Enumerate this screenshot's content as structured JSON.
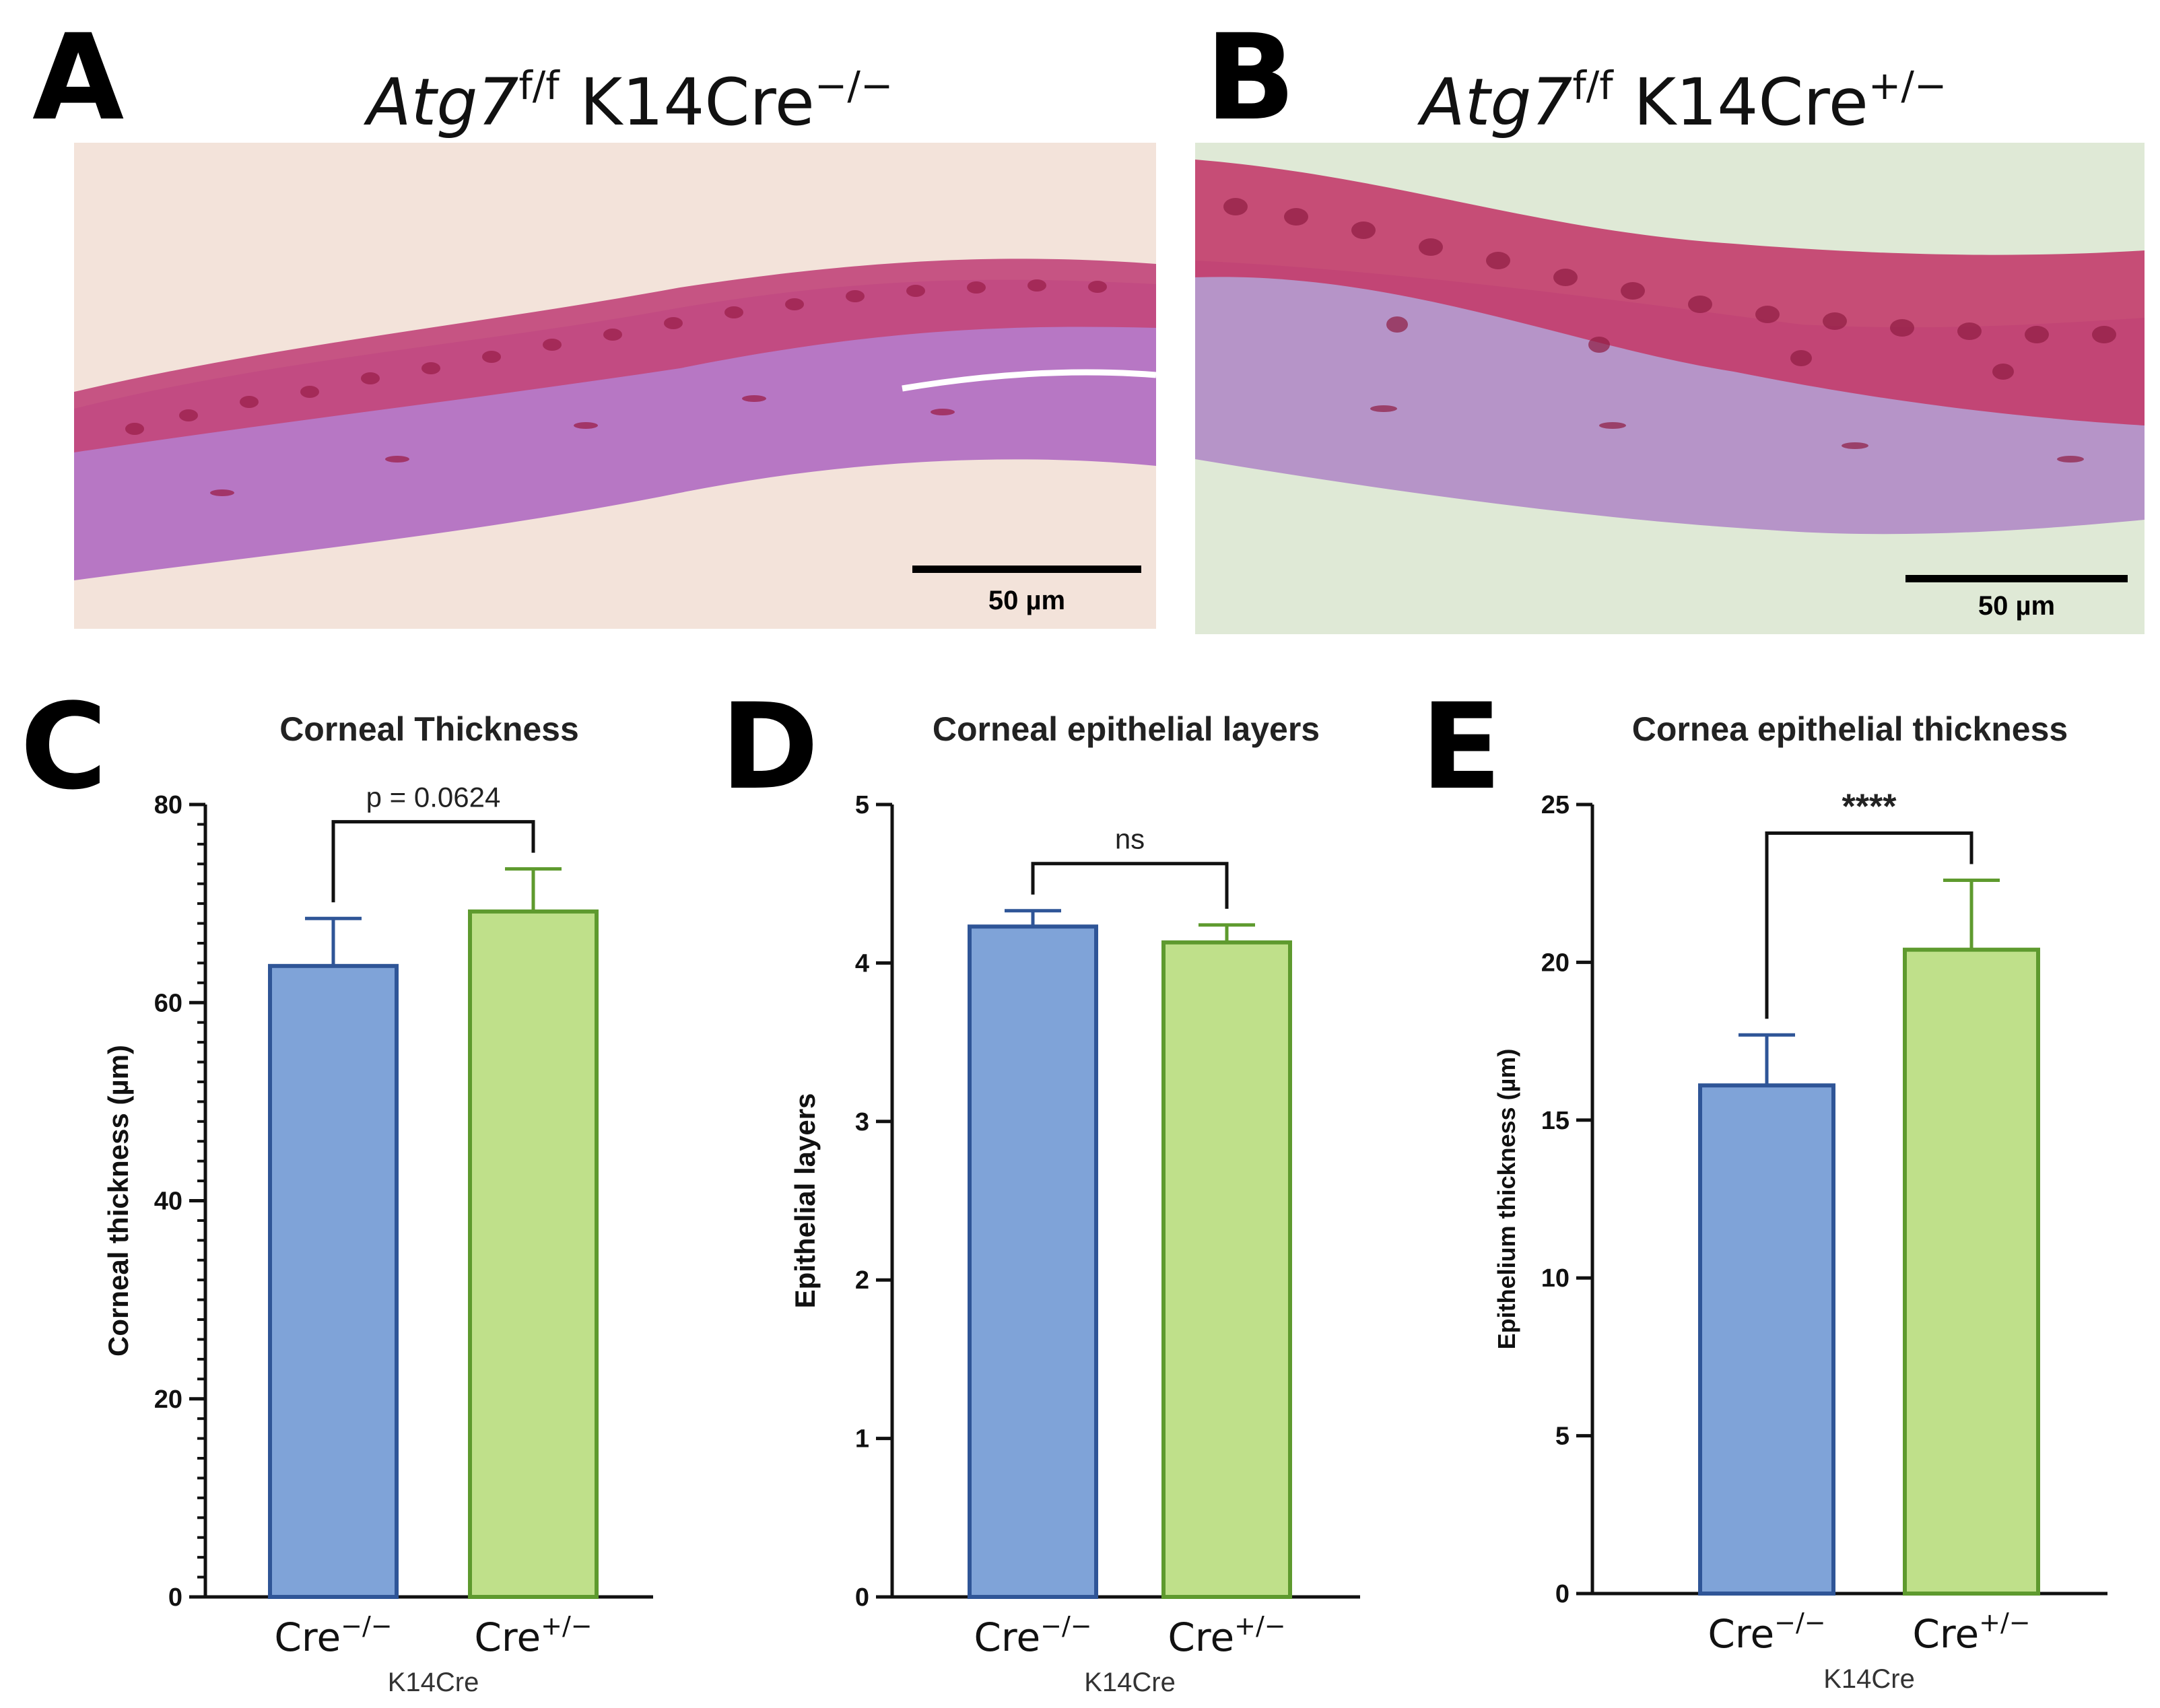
{
  "panels": {
    "A": {
      "letter": "A",
      "title_gene": "Atg7",
      "title_gene_sup": "f/f",
      "title_cre": " K14Cre",
      "title_cre_sup": "−/−",
      "scale_bar_label": "50 µm",
      "colors": {
        "background": "#f3e3da",
        "stroma": "#b777c4",
        "epithelium": "#c43a6e"
      }
    },
    "B": {
      "letter": "B",
      "title_gene": "Atg7",
      "title_gene_sup": "f/f",
      "title_cre": " K14Cre",
      "title_cre_sup": "+/−",
      "scale_bar_label": "50 µm",
      "colors": {
        "background": "#dfe9d6",
        "stroma": "#b694c8",
        "epithelium": "#c33c6c"
      }
    }
  },
  "chart_data": [
    {
      "letter": "C",
      "type": "bar",
      "title": "Corneal Thickness",
      "ylabel": "Corneal thickness (µm)",
      "xlabel": "K14Cre",
      "categories": [
        {
          "base": "Cre",
          "sup": "−/−"
        },
        {
          "base": "Cre",
          "sup": "+/−"
        }
      ],
      "values": [
        63.7,
        69.2
      ],
      "errors": [
        4.8,
        4.3
      ],
      "ylim": [
        0,
        80
      ],
      "yticks": [
        0,
        20,
        40,
        60,
        80
      ],
      "minor_ticks_per_major": 10,
      "significance": "p = 0.0624",
      "colors": [
        "#7fa3d8",
        "#bfe08a"
      ],
      "edge_colors": [
        "#2f5597",
        "#5e9a2e"
      ]
    },
    {
      "letter": "D",
      "type": "bar",
      "title": "Corneal epithelial layers",
      "ylabel": "Epithelial layers",
      "xlabel": "K14Cre",
      "categories": [
        {
          "base": "Cre",
          "sup": "−/−"
        },
        {
          "base": "Cre",
          "sup": "+/−"
        }
      ],
      "values": [
        4.23,
        4.13
      ],
      "errors": [
        0.1,
        0.11
      ],
      "ylim": [
        0,
        5
      ],
      "yticks": [
        0,
        1,
        2,
        3,
        4,
        5
      ],
      "minor_ticks_per_major": 0,
      "significance": "ns",
      "colors": [
        "#7fa3d8",
        "#bfe08a"
      ],
      "edge_colors": [
        "#2f5597",
        "#5e9a2e"
      ]
    },
    {
      "letter": "E",
      "type": "bar",
      "title": "Cornea epithelial thickness",
      "ylabel": "Epithelium thickness (µm)",
      "xlabel": "K14Cre",
      "categories": [
        {
          "base": "Cre",
          "sup": "−/−"
        },
        {
          "base": "Cre",
          "sup": "+/−"
        }
      ],
      "values": [
        16.1,
        20.4
      ],
      "errors": [
        1.6,
        2.2
      ],
      "ylim": [
        0,
        25
      ],
      "yticks": [
        0,
        5,
        10,
        15,
        20,
        25
      ],
      "minor_ticks_per_major": 0,
      "significance": "****",
      "colors": [
        "#7fa3d8",
        "#bfe08a"
      ],
      "edge_colors": [
        "#2f5597",
        "#5e9a2e"
      ]
    }
  ]
}
